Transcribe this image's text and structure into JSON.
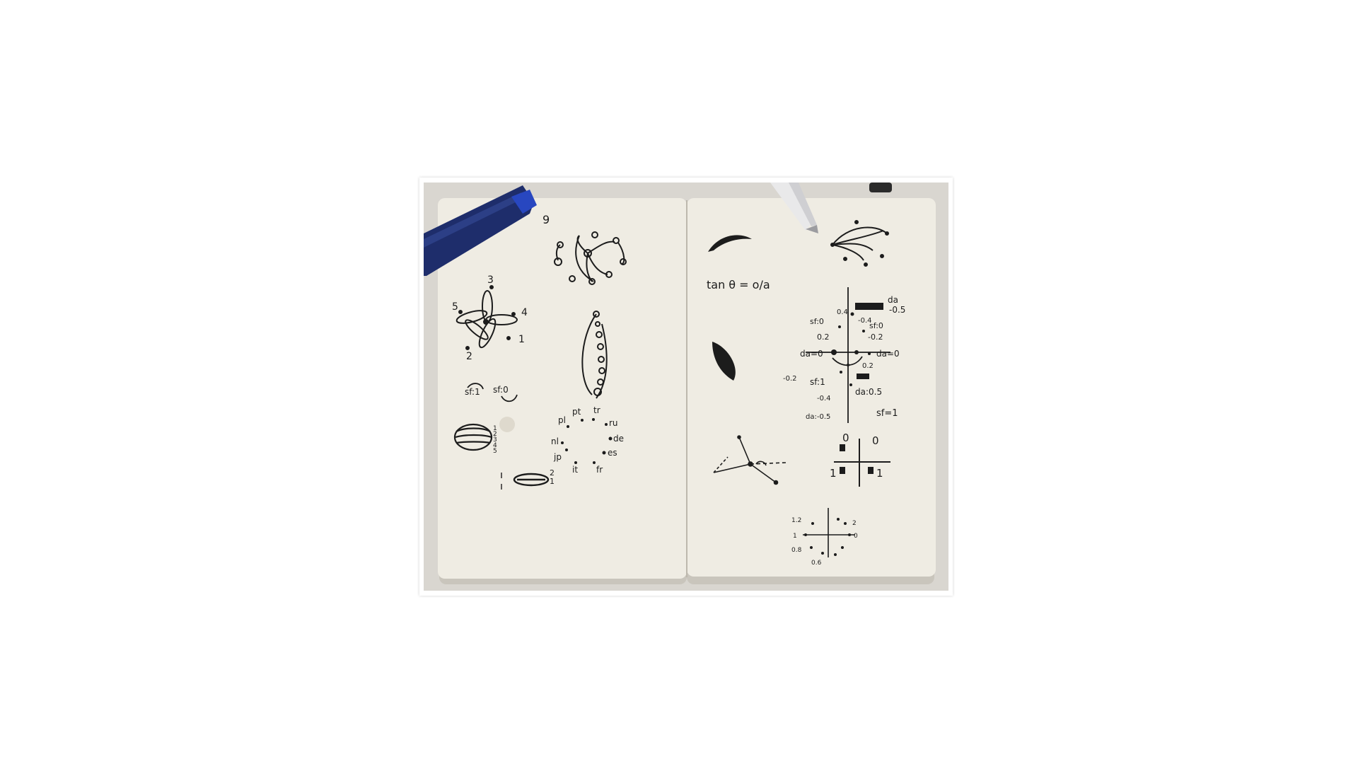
{
  "image": {
    "subject": "Open notebook with hand-drawn sketches, two pens on top",
    "colors": {
      "background": "#ffffff",
      "desk": "#d9d6d0",
      "paper": "#efece3",
      "ink": "#1c1c1c",
      "pen_blue": "#1e2d6b",
      "pen_white": "#e9e9ea",
      "binding": "#2b2b2b"
    }
  },
  "left_page": {
    "petal_labels": [
      "3",
      "5",
      "4",
      "1",
      "2"
    ],
    "ring_label": "9",
    "rotation_labels": [
      "sf:1",
      "sf:0"
    ],
    "stack_labels": [
      "1",
      "2",
      "3",
      "4",
      "5"
    ],
    "lens_labels": [
      "2",
      "1"
    ],
    "country_codes": [
      "pl",
      "pt",
      "tr",
      "ru",
      "nl",
      "de",
      "jp",
      "es",
      "it",
      "fr"
    ]
  },
  "right_page": {
    "formula": "tan θ = o/a",
    "chart_labels": [
      "da",
      "-0.5",
      "0.4",
      "-0.4",
      "sf:0",
      "sf:0",
      "0.2",
      "-0.2",
      "da=0",
      "da=0",
      "0.2",
      "-0.2",
      "sf:1",
      "-0.4",
      "da:0.5",
      "da:-0.5",
      "sf=1"
    ],
    "quadrant_labels": [
      "0",
      "0",
      "1",
      "1"
    ],
    "dial_labels": [
      "1.2",
      "1",
      "0.8",
      "0.6",
      "2",
      "0"
    ]
  }
}
